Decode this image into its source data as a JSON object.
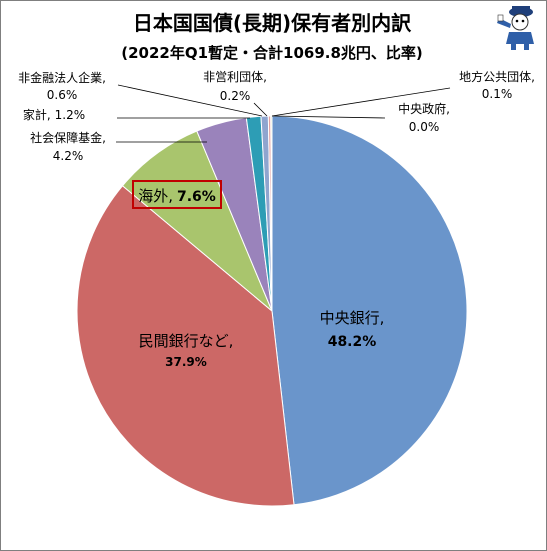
{
  "chart_data": {
    "type": "pie",
    "title": "日本国国債(長期)保有者別内訳",
    "subtitle": "(2022年Q1暫定・合計1069.8兆円、比率)",
    "slices": [
      {
        "name": "中央銀行,",
        "value": 48.2,
        "value_label": "48.2%",
        "color": "#6a95cb"
      },
      {
        "name": "民間銀行など,",
        "value": 37.9,
        "value_label": "37.9%",
        "color": "#cc6866"
      },
      {
        "name": "海外,",
        "value": 7.6,
        "value_label": "7.6%",
        "color": "#a9c56d"
      },
      {
        "name": "社会保障基金,",
        "value": 4.2,
        "value_label": "4.2%",
        "color": "#9a83bb"
      },
      {
        "name": "家計,",
        "value": 1.2,
        "value_label": "1.2%",
        "color": "#2d9db5"
      },
      {
        "name": "非金融法人企業,",
        "value": 0.6,
        "value_label": "0.6%",
        "color": "#8fa5cf"
      },
      {
        "name": "非営利団体,",
        "value": 0.2,
        "value_label": "0.2%",
        "color": "#e2a1a0"
      },
      {
        "name": "地方公共団体,",
        "value": 0.1,
        "value_label": "0.1%",
        "color": "#c8d99f"
      },
      {
        "name": "中央政府,",
        "value": 0.0,
        "value_label": "0.0%",
        "color": "#e48b3c"
      }
    ],
    "highlight_slice": "海外,",
    "highlight_color": "#c00000"
  },
  "mascot_icon": "mascot-character-icon"
}
